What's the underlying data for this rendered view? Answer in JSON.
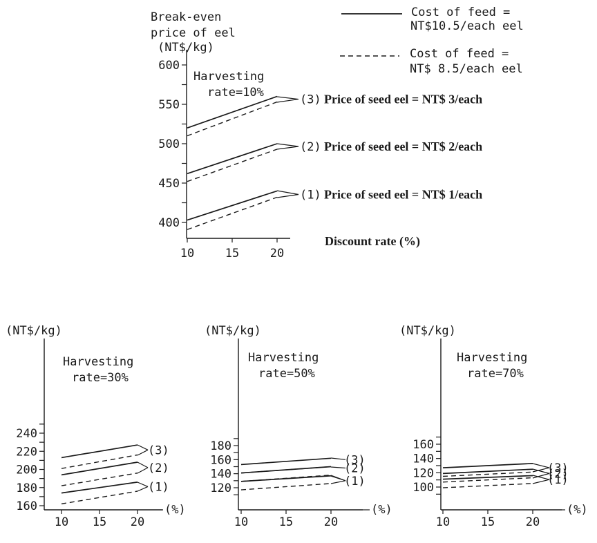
{
  "legend": {
    "header": [
      "Break-even",
      "price of eel"
    ],
    "solid": [
      "Cost of feed =",
      "NT$10.5/each eel"
    ],
    "dashed": [
      "Cost of feed =",
      "NT$ 8.5/each eel"
    ]
  },
  "chart_data": [
    {
      "type": "line",
      "ylabel": "(NT$/kg)",
      "xlabel": "Discount rate (%)",
      "annotation": [
        "Harvesting",
        "rate=10%"
      ],
      "x": [
        10,
        20
      ],
      "xticks": [
        10,
        15,
        20
      ],
      "yticks": [
        400,
        450,
        500,
        550,
        600
      ],
      "ylim": [
        380,
        620
      ],
      "series": [
        {
          "group": "(3)",
          "style": "solid",
          "values": [
            520,
            560
          ]
        },
        {
          "group": "(3)",
          "style": "dashed",
          "values": [
            510,
            553
          ]
        },
        {
          "group": "(2)",
          "style": "solid",
          "values": [
            462,
            500
          ]
        },
        {
          "group": "(2)",
          "style": "dashed",
          "values": [
            452,
            493
          ]
        },
        {
          "group": "(1)",
          "style": "solid",
          "values": [
            403,
            440
          ]
        },
        {
          "group": "(1)",
          "style": "dashed",
          "values": [
            391,
            432
          ]
        }
      ],
      "group_labels": [
        {
          "id": "(3)",
          "text": "Price of seed eel = NT$ 3/each"
        },
        {
          "id": "(2)",
          "text": "Price of seed eel = NT$ 2/each"
        },
        {
          "id": "(1)",
          "text": "Price of seed eel = NT$ 1/each"
        }
      ]
    },
    {
      "type": "line",
      "ylabel": "(NT$/kg)",
      "xlabel": "(%)",
      "annotation": [
        "Harvesting",
        "rate=30%"
      ],
      "x": [
        10,
        20
      ],
      "xticks": [
        10,
        15,
        20
      ],
      "yticks": [
        160,
        180,
        200,
        220,
        240
      ],
      "ylim": [
        155,
        245
      ],
      "series": [
        {
          "group": "(3)",
          "style": "solid",
          "values": [
            213,
            227
          ]
        },
        {
          "group": "(3)",
          "style": "dashed",
          "values": [
            201,
            216
          ]
        },
        {
          "group": "(2)",
          "style": "solid",
          "values": [
            194,
            208
          ]
        },
        {
          "group": "(2)",
          "style": "dashed",
          "values": [
            182,
            196
          ]
        },
        {
          "group": "(1)",
          "style": "solid",
          "values": [
            174,
            186
          ]
        },
        {
          "group": "(1)",
          "style": "dashed",
          "values": [
            162,
            176
          ]
        }
      ],
      "group_labels": [
        {
          "id": "(3)"
        },
        {
          "id": "(2)"
        },
        {
          "id": "(1)"
        }
      ]
    },
    {
      "type": "line",
      "ylabel": "(NT$/kg)",
      "xlabel": "(%)",
      "annotation": [
        "Harvesting",
        "rate=50%"
      ],
      "x": [
        10,
        20
      ],
      "xticks": [
        10,
        15,
        20
      ],
      "yticks": [
        120,
        140,
        160,
        180
      ],
      "ylim": [
        105,
        200
      ],
      "series": [
        {
          "group": "(3)",
          "style": "solid",
          "values": [
            153,
            162
          ]
        },
        {
          "group": "(2)",
          "style": "solid",
          "values": [
            141,
            150
          ]
        },
        {
          "group": "(2)",
          "style": "dashed",
          "values": [
            141,
            150
          ]
        },
        {
          "group": "(1)",
          "style": "solid",
          "values": [
            129,
            137
          ]
        },
        {
          "group": "(1)",
          "style": "dashed",
          "values": [
            129,
            138
          ]
        },
        {
          "group": "(1)",
          "style": "dashed",
          "values": [
            117,
            126
          ]
        }
      ],
      "group_labels": [
        {
          "id": "(3)"
        },
        {
          "id": "(2)"
        },
        {
          "id": "(1)"
        }
      ]
    },
    {
      "type": "line",
      "ylabel": "(NT$/kg)",
      "xlabel": "(%)",
      "annotation": [
        "Harvesting",
        "rate=70%"
      ],
      "x": [
        10,
        20
      ],
      "xticks": [
        10,
        15,
        20
      ],
      "yticks": [
        100,
        120,
        140,
        160
      ],
      "ylim": [
        85,
        185
      ],
      "series": [
        {
          "group": "(3)",
          "style": "solid",
          "values": [
            127,
            133
          ]
        },
        {
          "group": "(3)",
          "style": "dashed",
          "values": [
            115,
            121
          ]
        },
        {
          "group": "(2)",
          "style": "solid",
          "values": [
            119,
            125
          ]
        },
        {
          "group": "(2)",
          "style": "dashed",
          "values": [
            107,
            113
          ]
        },
        {
          "group": "(1)",
          "style": "solid",
          "values": [
            111,
            116
          ]
        },
        {
          "group": "(1)",
          "style": "dashed",
          "values": [
            99,
            105
          ]
        }
      ],
      "group_labels": [
        {
          "id": "(3)"
        },
        {
          "id": "(2)"
        },
        {
          "id": "(1)"
        }
      ]
    }
  ]
}
